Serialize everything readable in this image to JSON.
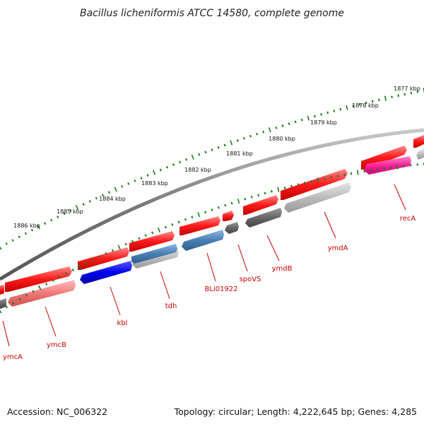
{
  "title": "Bacillus licheniformis ATCC 14580, complete genome",
  "footer": {
    "accession": "Accession: NC_006322",
    "summary": "Topology: circular; Length: 4,222,645 bp; Genes: 4,285"
  },
  "colors": {
    "tick": "#1a7a1a",
    "backbone": "#8a8a8a",
    "gene_label": "#cc0000"
  },
  "kbp_labels": [
    "1877 kbp",
    "1878 kbp",
    "1879 kbp",
    "1880 kbp",
    "1881 kbp",
    "1882 kbp",
    "1883 kbp",
    "1884 kbp",
    "1885 kbp",
    "1886 kbp"
  ],
  "genes": [
    {
      "name": "ymcA",
      "color": "#ff1a1a"
    },
    {
      "name": "ymcB",
      "color": "#ff1a1a"
    },
    {
      "name": "kbl",
      "color": "#0000ee"
    },
    {
      "name": "tdh",
      "color": "#4a7fb5"
    },
    {
      "name": "BLi01922",
      "color": "#4a7fb5"
    },
    {
      "name": "spoVS",
      "color": "#ff1a1a"
    },
    {
      "name": "ymdB",
      "color": "#666666"
    },
    {
      "name": "ymdA",
      "color": "#bbbbbb"
    },
    {
      "name": "recA",
      "color": "#ff2299"
    }
  ]
}
